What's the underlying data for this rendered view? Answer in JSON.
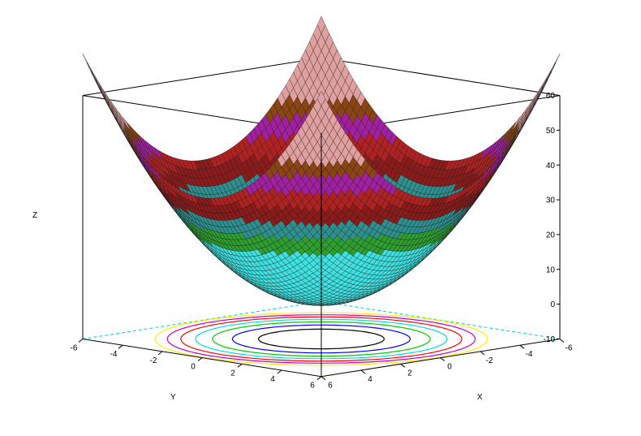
{
  "chart_data": {
    "type": "surface3d",
    "function": "z = x^2 + y^2",
    "x_range": [
      -6,
      6
    ],
    "y_range": [
      -6,
      6
    ],
    "z_range": [
      -10,
      60
    ],
    "xlabel": "X",
    "ylabel": "Y",
    "zlabel": "Z",
    "x_ticks": [
      6,
      4,
      2,
      0,
      -2,
      -4,
      -6
    ],
    "y_ticks": [
      -6,
      -4,
      -2,
      0,
      2,
      4,
      6
    ],
    "z_ticks": [
      60,
      50,
      40,
      30,
      20,
      10,
      0,
      -10
    ],
    "surface_grid_points": 60,
    "surface_color_bands": [
      {
        "z_from": -10,
        "z_to": 20,
        "color": "#40e0e0"
      },
      {
        "z_from": 20,
        "z_to": 25,
        "color": "#2e9e2e"
      },
      {
        "z_from": 25,
        "z_to": 30,
        "color": "#2f8f8f"
      },
      {
        "z_from": 30,
        "z_to": 35,
        "color": "#8b1a1a"
      },
      {
        "z_from": 35,
        "z_to": 40,
        "color": "#b02222"
      },
      {
        "z_from": 40,
        "z_to": 45,
        "color": "#a020a0"
      },
      {
        "z_from": 45,
        "z_to": 50,
        "color": "#8b4513"
      },
      {
        "z_from": 50,
        "z_to": 60,
        "color": "#e0a0a0"
      }
    ],
    "contour_levels": [
      {
        "z": 5,
        "color": "#000000"
      },
      {
        "z": 10,
        "color": "#0000ff"
      },
      {
        "z": 15,
        "color": "#00cc00"
      },
      {
        "z": 20,
        "color": "#00dddd"
      },
      {
        "z": 25,
        "color": "#ff0000"
      },
      {
        "z": 30,
        "color": "#cc00cc"
      },
      {
        "z": 35,
        "color": "#ffee00"
      }
    ],
    "box_color": "#000000",
    "axis_line_color": "#00cccc",
    "background": "#ffffff"
  }
}
